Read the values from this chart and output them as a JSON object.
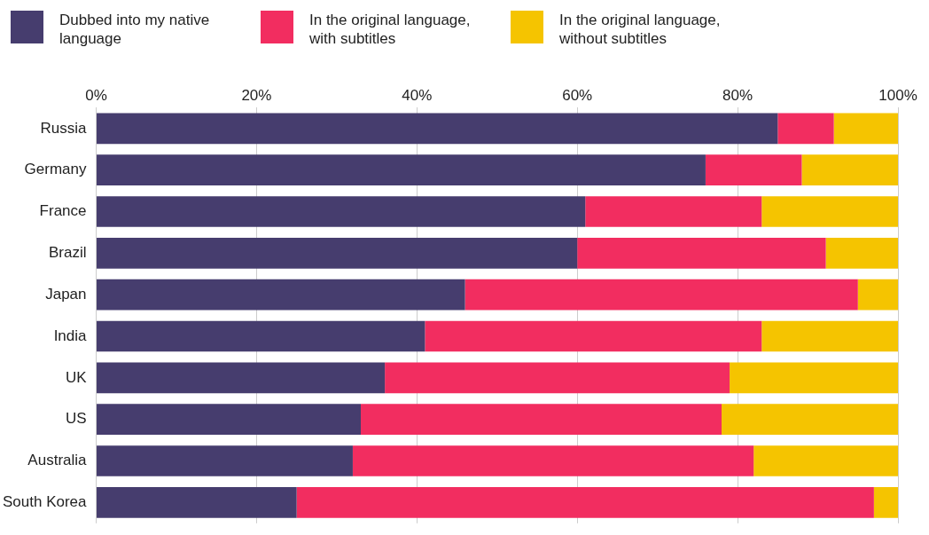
{
  "chart_data": {
    "type": "bar",
    "orientation": "horizontal",
    "stacked": true,
    "legend": "top left",
    "grid": "x",
    "categories": [
      "Russia",
      "Germany",
      "France",
      "Brazil",
      "Japan",
      "India",
      "UK",
      "US",
      "Australia",
      "South Korea"
    ],
    "series": [
      {
        "name": "Dubbed into my native language",
        "color": "#463d6e",
        "values": [
          85,
          76,
          61,
          60,
          46,
          41,
          36,
          33,
          32,
          25
        ]
      },
      {
        "name": "In the original language, with subtitles",
        "color": "#f22d60",
        "values": [
          7,
          12,
          22,
          31,
          49,
          42,
          43,
          45,
          50,
          72
        ]
      },
      {
        "name": "In the original language, without subtitles",
        "color": "#f5c400",
        "values": [
          8,
          12,
          17,
          9,
          5,
          17,
          21,
          22,
          18,
          3
        ]
      }
    ],
    "xlim": [
      0,
      100
    ],
    "xticks": [
      {
        "value": 0,
        "label": "0%"
      },
      {
        "value": 20,
        "label": "20%"
      },
      {
        "value": 40,
        "label": "40%"
      },
      {
        "value": 60,
        "label": "60%"
      },
      {
        "value": 80,
        "label": "80%"
      },
      {
        "value": 100,
        "label": "100%"
      }
    ]
  }
}
